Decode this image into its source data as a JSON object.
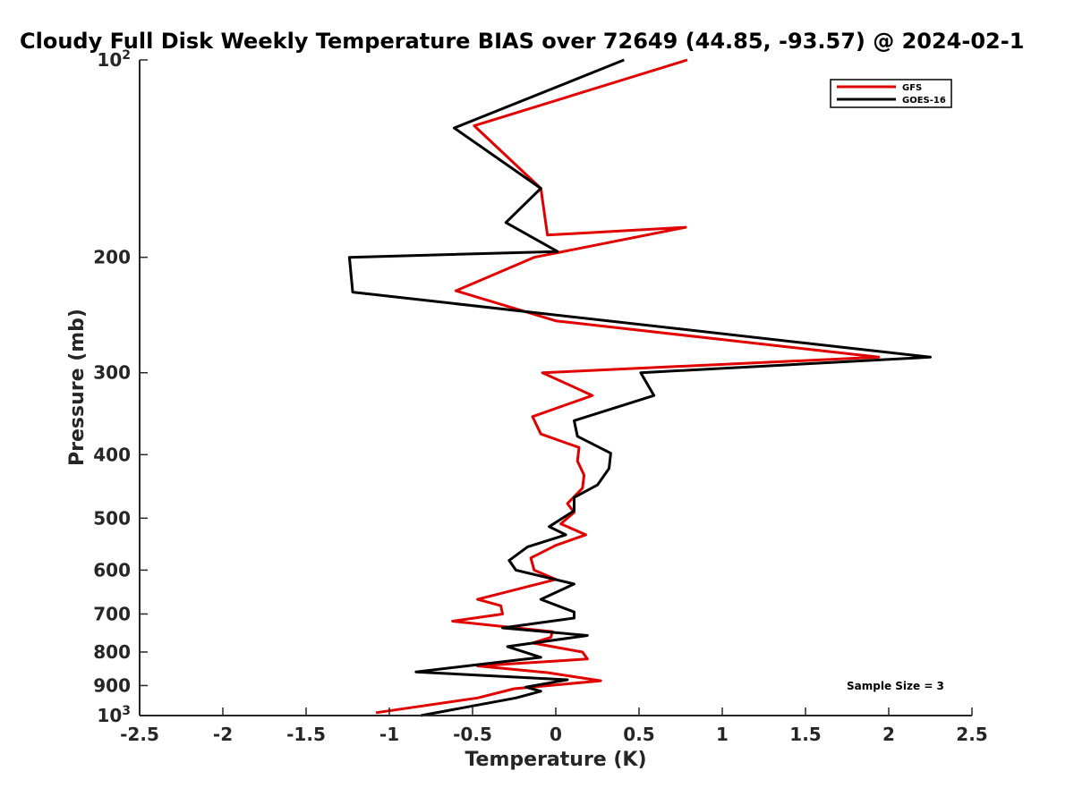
{
  "chart_data": {
    "type": "line",
    "title": "Cloudy Full Disk Weekly Temperature BIAS over 72649 (44.85, -93.57) @ 2024-02-1",
    "xlabel": "Temperature (K)",
    "ylabel": "Pressure (mb)",
    "xlim": [
      -2.5,
      2.5
    ],
    "ylim": [
      100,
      1000
    ],
    "yscale": "log",
    "y_reversed": true,
    "grid": false,
    "legend_position": "top-right",
    "x_ticks": [
      "-2.5",
      "-2",
      "-1.5",
      "-1",
      "-0.5",
      "0",
      "0.5",
      "1",
      "1.5",
      "2",
      "2.5"
    ],
    "y_ticks": [
      {
        "value": 100,
        "base": "10",
        "exp": "2"
      },
      {
        "value": 200,
        "label": "200"
      },
      {
        "value": 300,
        "label": "300"
      },
      {
        "value": 400,
        "label": "400"
      },
      {
        "value": 500,
        "label": "500"
      },
      {
        "value": 600,
        "label": "600"
      },
      {
        "value": 700,
        "label": "700"
      },
      {
        "value": 800,
        "label": "800"
      },
      {
        "value": 900,
        "label": "900"
      },
      {
        "value": 1000,
        "base": "10",
        "exp": "3"
      }
    ],
    "annotation": "Sample Size = 3",
    "series": [
      {
        "name": "GFS",
        "color": "#e00000",
        "points": [
          [
            0.79,
            100
          ],
          [
            -0.49,
            126
          ],
          [
            -0.09,
            157
          ],
          [
            -0.05,
            185
          ],
          [
            0.78,
            180
          ],
          [
            -0.13,
            200
          ],
          [
            -0.6,
            225
          ],
          [
            0.0,
            250
          ],
          [
            1.94,
            284
          ],
          [
            -0.08,
            300
          ],
          [
            0.22,
            325
          ],
          [
            -0.14,
            350
          ],
          [
            -0.09,
            372
          ],
          [
            0.14,
            390
          ],
          [
            0.13,
            409
          ],
          [
            0.17,
            430
          ],
          [
            0.16,
            450
          ],
          [
            0.07,
            475
          ],
          [
            0.11,
            490
          ],
          [
            0.03,
            510
          ],
          [
            0.18,
            530
          ],
          [
            0.0,
            550
          ],
          [
            -0.15,
            575
          ],
          [
            -0.13,
            600
          ],
          [
            0.0,
            620
          ],
          [
            -0.47,
            665
          ],
          [
            -0.33,
            680
          ],
          [
            -0.32,
            700
          ],
          [
            -0.62,
            718
          ],
          [
            -0.02,
            745
          ],
          [
            -0.03,
            760
          ],
          [
            -0.14,
            775
          ],
          [
            0.16,
            800
          ],
          [
            0.19,
            820
          ],
          [
            -0.47,
            840
          ],
          [
            -0.05,
            860
          ],
          [
            0.27,
            885
          ],
          [
            -0.25,
            910
          ],
          [
            -0.47,
            940
          ],
          [
            -1.08,
            990
          ]
        ]
      },
      {
        "name": "GOES-16",
        "color": "#000000",
        "points": [
          [
            0.41,
            100
          ],
          [
            -0.61,
            127
          ],
          [
            -0.09,
            157
          ],
          [
            -0.3,
            177
          ],
          [
            0.01,
            196
          ],
          [
            -1.24,
            200
          ],
          [
            -1.22,
            226
          ],
          [
            2.25,
            284
          ],
          [
            0.51,
            300
          ],
          [
            0.59,
            325
          ],
          [
            0.11,
            355
          ],
          [
            0.13,
            375
          ],
          [
            0.33,
            398
          ],
          [
            0.32,
            420
          ],
          [
            0.25,
            445
          ],
          [
            0.11,
            465
          ],
          [
            0.11,
            487
          ],
          [
            -0.04,
            515
          ],
          [
            0.06,
            530
          ],
          [
            -0.17,
            553
          ],
          [
            -0.28,
            580
          ],
          [
            -0.24,
            600
          ],
          [
            0.11,
            630
          ],
          [
            -0.09,
            665
          ],
          [
            0.11,
            695
          ],
          [
            0.11,
            710
          ],
          [
            -0.32,
            735
          ],
          [
            0.19,
            755
          ],
          [
            -0.29,
            785
          ],
          [
            -0.09,
            815
          ],
          [
            -0.84,
            858
          ],
          [
            0.07,
            882
          ],
          [
            -0.18,
            905
          ],
          [
            -0.09,
            918
          ],
          [
            -0.24,
            940
          ],
          [
            -0.81,
            1000
          ]
        ]
      }
    ]
  }
}
